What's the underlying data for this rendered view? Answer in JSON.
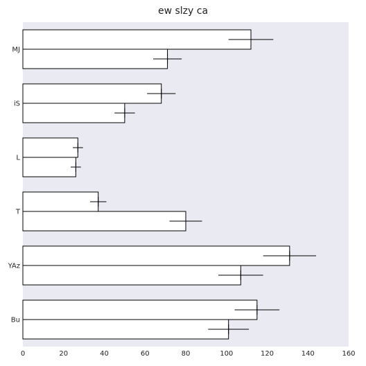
{
  "chart_data": {
    "type": "bar",
    "orientation": "horizontal",
    "title": "ew slzy ca",
    "xlabel": "",
    "ylabel": "",
    "categories": [
      "MJ",
      "iS",
      "L",
      "T",
      "YAz",
      "Bu"
    ],
    "series": [
      {
        "values": [
          112,
          68,
          27,
          37,
          131,
          115
        ],
        "errors": [
          11,
          7,
          2.5,
          4,
          13,
          11
        ]
      },
      {
        "values": [
          71,
          50,
          26,
          80,
          107,
          101
        ],
        "errors": [
          7,
          5,
          2.5,
          8,
          11,
          10
        ]
      }
    ],
    "xlim": [
      0,
      160
    ],
    "xticks": [
      0,
      20,
      40,
      60,
      80,
      100,
      120,
      140,
      160
    ],
    "grid": false,
    "legend": "none",
    "colors": {
      "plot_background": "#eaeaf2",
      "bar_fill": "#ffffff",
      "bar_edge": "#000000",
      "error_bar": "#000000",
      "text": "#222222"
    }
  }
}
